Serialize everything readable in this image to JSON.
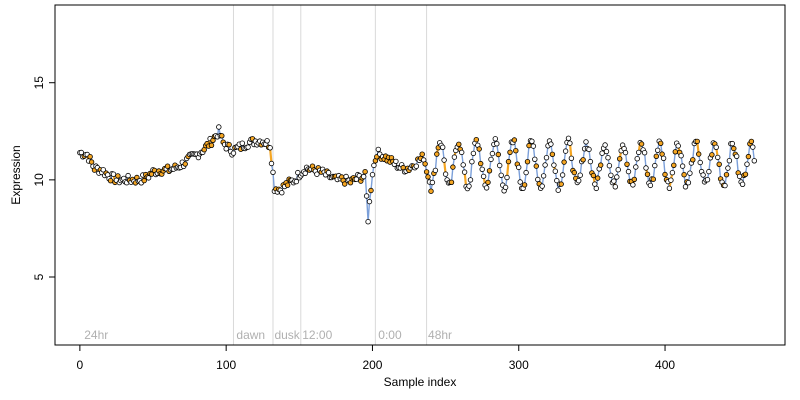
{
  "chart_data": {
    "type": "scatter",
    "xlabel": "Sample index",
    "ylabel": "Expression",
    "xlim": [
      -17,
      482
    ],
    "ylim": [
      1.5,
      19
    ],
    "xticks": [
      0,
      100,
      200,
      300,
      400
    ],
    "yticks": [
      5,
      10,
      15
    ],
    "grid": false,
    "colors": {
      "line": "#7b9fd9",
      "highlight": "#f5a623",
      "point_fill_default": "#ffffff",
      "point_fill_alt": "#f5a623",
      "point_stroke": "#000000",
      "divider": "#d9d9d9",
      "segment_label": "#b0b0b0"
    },
    "segment_labels": [
      {
        "x": 3,
        "label": "24hr"
      },
      {
        "x": 107,
        "label": "dawn"
      },
      {
        "x": 133,
        "label": "dusk"
      },
      {
        "x": 152,
        "label": "12:00"
      },
      {
        "x": 204,
        "label": "0:00"
      },
      {
        "x": 238,
        "label": "48hr"
      }
    ],
    "dividers": [
      105,
      132,
      151,
      202,
      237
    ],
    "anchors": [
      [
        0,
        11.4
      ],
      [
        5,
        11.3
      ],
      [
        10,
        10.6
      ],
      [
        15,
        10.5
      ],
      [
        20,
        10.2
      ],
      [
        25,
        10.0
      ],
      [
        30,
        10.0
      ],
      [
        35,
        10.0
      ],
      [
        40,
        10.0
      ],
      [
        45,
        10.1
      ],
      [
        50,
        10.4
      ],
      [
        55,
        10.5
      ],
      [
        60,
        10.5
      ],
      [
        65,
        10.6
      ],
      [
        70,
        10.8
      ],
      [
        75,
        11.1
      ],
      [
        80,
        11.3
      ],
      [
        85,
        11.6
      ],
      [
        90,
        12.0
      ],
      [
        95,
        12.5
      ],
      [
        98,
        11.9
      ],
      [
        104,
        11.5
      ],
      [
        110,
        11.7
      ],
      [
        115,
        11.9
      ],
      [
        120,
        12.0
      ],
      [
        125,
        12.0
      ],
      [
        130,
        11.8
      ],
      [
        133,
        9.6
      ],
      [
        137,
        9.5
      ],
      [
        142,
        9.8
      ],
      [
        147,
        10.0
      ],
      [
        151,
        10.4
      ],
      [
        155,
        10.6
      ],
      [
        160,
        10.5
      ],
      [
        165,
        10.4
      ],
      [
        170,
        10.2
      ],
      [
        175,
        10.0
      ],
      [
        180,
        10.0
      ],
      [
        185,
        9.9
      ],
      [
        190,
        10.1
      ],
      [
        195,
        10.2
      ],
      [
        197,
        8.0
      ],
      [
        200,
        10.4
      ],
      [
        203,
        11.4
      ],
      [
        208,
        11.2
      ],
      [
        212,
        11.0
      ],
      [
        216,
        10.8
      ],
      [
        220,
        10.6
      ],
      [
        225,
        10.6
      ],
      [
        230,
        10.9
      ],
      [
        235,
        11.2
      ],
      [
        238,
        10.2
      ],
      [
        240,
        10.0
      ]
    ],
    "oscillation": {
      "x_start": 240,
      "x_end": 461,
      "step": 1,
      "period": 12.5,
      "amp_start": 1.2,
      "amp_end": 1.0,
      "center": 10.8
    }
  }
}
